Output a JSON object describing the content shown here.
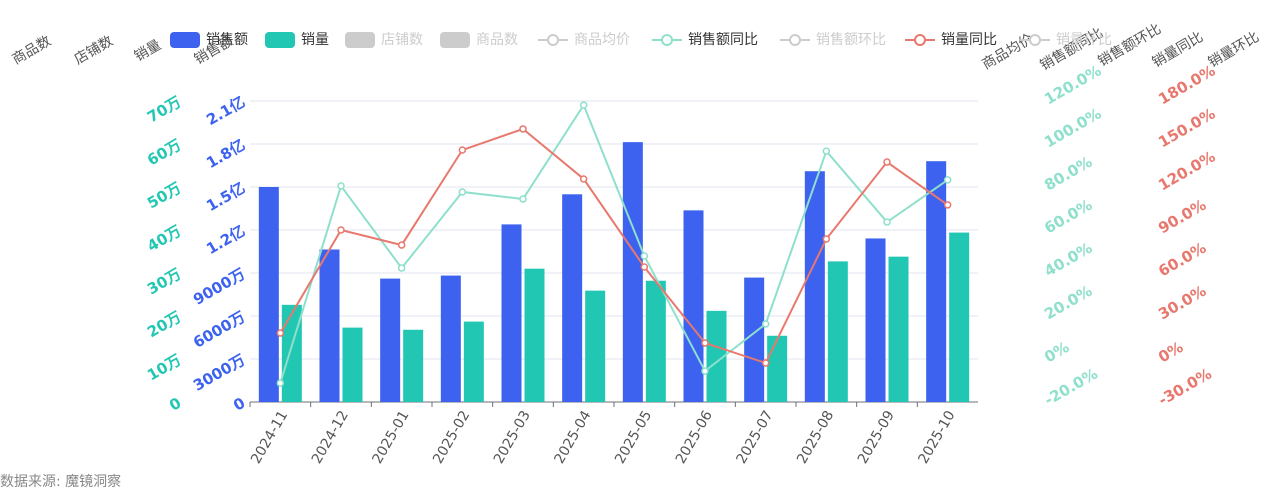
{
  "chart_data": {
    "type": "combo",
    "categories": [
      "2024-11",
      "2024-12",
      "2025-01",
      "2025-02",
      "2025-03",
      "2025-04",
      "2025-05",
      "2025-06",
      "2025-07",
      "2025-08",
      "2025-09",
      "2025-10"
    ],
    "series": [
      {
        "name": "销售额",
        "type": "bar",
        "axis": "y",
        "color": "#3c62ef",
        "values": [
          15000,
          10640,
          8610,
          8820,
          12390,
          14490,
          18130,
          13370,
          8680,
          16100,
          11410,
          16800
        ]
      },
      {
        "name": "销量",
        "type": "bar",
        "axis": "y2",
        "color": "#22c7b3",
        "values": [
          22.6,
          17.3,
          16.8,
          18.7,
          31.0,
          25.9,
          28.2,
          21.2,
          15.4,
          32.7,
          33.8,
          39.4
        ]
      },
      {
        "name": "店铺数",
        "type": "bar",
        "color": "#cccccc",
        "hidden": true
      },
      {
        "name": "商品数",
        "type": "bar",
        "color": "#cccccc",
        "hidden": true
      },
      {
        "name": "商品均价",
        "type": "line",
        "color": "#cccccc",
        "hidden": true
      },
      {
        "name": "销售额同比",
        "type": "line",
        "axis": "y3",
        "color": "#8ee0cc",
        "values": [
          -11.2,
          80.5,
          42.3,
          77.7,
          74.4,
          118.1,
          47.9,
          -5.6,
          16.3,
          96.7,
          63.7,
          83.3
        ]
      },
      {
        "name": "销售额环比",
        "type": "line",
        "color": "#cccccc",
        "hidden": true
      },
      {
        "name": "销量同比",
        "type": "line",
        "axis": "y4",
        "color": "#e8786e",
        "values": [
          18.1,
          90,
          79.5,
          145.8,
          160.5,
          125.6,
          64.2,
          11.2,
          -2.8,
          83.7,
          137.4,
          107.5
        ]
      },
      {
        "name": "销量环比",
        "type": "line",
        "color": "#cccccc",
        "hidden": true
      }
    ],
    "ylim": [
      0,
      21000
    ],
    "yticks": [
      0,
      {
        "value": 3000,
        "label": "3000万"
      },
      {
        "value": 6000,
        "label": "6000万"
      },
      {
        "value": 9000,
        "label": "9000万"
      },
      {
        "value": 12000,
        "label": "1.2亿"
      },
      {
        "value": 15000,
        "label": "1.5亿"
      },
      {
        "value": 18000,
        "label": "1.8亿"
      },
      {
        "value": 21000,
        "label": "2.1亿"
      }
    ],
    "y2lim": [
      0,
      70
    ],
    "y2ticks": [
      0,
      {
        "value": 10,
        "label": "10万"
      },
      {
        "value": 20,
        "label": "20万"
      },
      {
        "value": 30,
        "label": "30万"
      },
      {
        "value": 40,
        "label": "40万"
      },
      {
        "value": 50,
        "label": "50万"
      },
      {
        "value": 60,
        "label": "60万"
      },
      {
        "value": 70,
        "label": "70万"
      }
    ],
    "y3lim": [
      -20,
      120
    ],
    "y3ticks": [
      {
        "value": -20,
        "label": "-20.0%"
      },
      {
        "value": 0,
        "label": "0%"
      },
      {
        "value": 20,
        "label": "20.0%"
      },
      {
        "value": 40,
        "label": "40.0%"
      },
      {
        "value": 60,
        "label": "60.0%"
      },
      {
        "value": 80,
        "label": "80.0%"
      },
      {
        "value": 100,
        "label": "100.0%"
      },
      {
        "value": 120,
        "label": "120.0%"
      }
    ],
    "y4lim": [
      -30,
      180
    ],
    "y4ticks": [
      {
        "value": -30,
        "label": "-30.0%"
      },
      {
        "value": 0,
        "label": "0%"
      },
      {
        "value": 30,
        "label": "30.0%"
      },
      {
        "value": 60,
        "label": "60.0%"
      },
      {
        "value": 90,
        "label": "90.0%"
      },
      {
        "value": 120,
        "label": "120.0%"
      },
      {
        "value": 150,
        "label": "150.0%"
      },
      {
        "value": 180,
        "label": "180.0%"
      }
    ],
    "axis_titles": [
      "商品数",
      "店铺数",
      "销量",
      "销售额",
      "商品均价",
      "销售额同比",
      "销售额环比",
      "销量同比",
      "销量环比"
    ],
    "grid": true,
    "source": "数据来源: 魔镜洞察"
  }
}
